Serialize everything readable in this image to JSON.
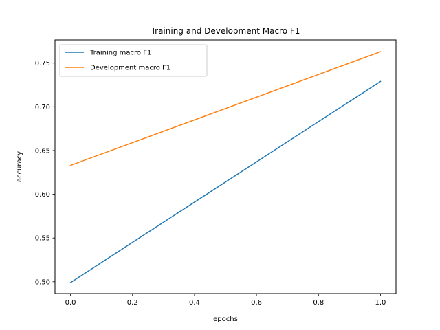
{
  "chart_data": {
    "type": "line",
    "title": "Training and Development Macro F1",
    "xlabel": "epochs",
    "ylabel": "accuracy",
    "xlim": [
      -0.05,
      1.05
    ],
    "ylim": [
      0.4865,
      0.7765
    ],
    "x": [
      0.0,
      1.0
    ],
    "xticks": [
      0.0,
      0.2,
      0.4,
      0.6,
      0.8,
      1.0
    ],
    "xtick_labels": [
      "0.0",
      "0.2",
      "0.4",
      "0.6",
      "0.8",
      "1.0"
    ],
    "yticks": [
      0.5,
      0.55,
      0.6,
      0.65,
      0.7,
      0.75
    ],
    "ytick_labels": [
      "0.50",
      "0.55",
      "0.60",
      "0.65",
      "0.70",
      "0.75"
    ],
    "grid": false,
    "legend_position": "upper-left",
    "series": [
      {
        "name": "Training macro F1",
        "values": [
          0.499,
          0.729
        ],
        "color": "#1f77b4"
      },
      {
        "name": "Development macro F1",
        "values": [
          0.633,
          0.763
        ],
        "color": "#ff7f0e"
      }
    ]
  }
}
